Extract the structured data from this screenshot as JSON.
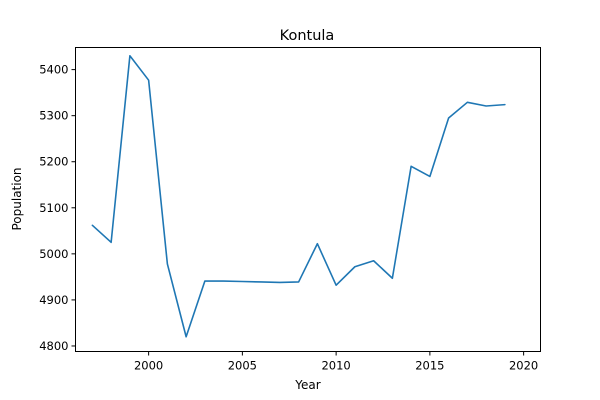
{
  "chart_data": {
    "type": "line",
    "title": "Kontula",
    "xlabel": "Year",
    "ylabel": "Population",
    "xlim": [
      1996.1,
      2020.9
    ],
    "ylim": [
      4788,
      5448
    ],
    "x_ticks": [
      2000,
      2005,
      2010,
      2015,
      2020
    ],
    "y_ticks": [
      4800,
      4900,
      5000,
      5100,
      5200,
      5300,
      5400
    ],
    "grid": false,
    "legend": "none",
    "series": [
      {
        "color": "#1f77b4",
        "x": [
          1997,
          1998,
          1999,
          2000,
          2001,
          2002,
          2003,
          2004,
          2005,
          2006,
          2007,
          2008,
          2009,
          2010,
          2011,
          2012,
          2013,
          2014,
          2015,
          2016,
          2017,
          2018,
          2019
        ],
        "y": [
          5062,
          5025,
          5430,
          5377,
          4978,
          4820,
          4941,
          4941,
          4940,
          4939,
          4938,
          4939,
          5022,
          4932,
          4972,
          4985,
          4947,
          5190,
          5168,
          5295,
          5329,
          5321,
          5324
        ]
      }
    ]
  }
}
